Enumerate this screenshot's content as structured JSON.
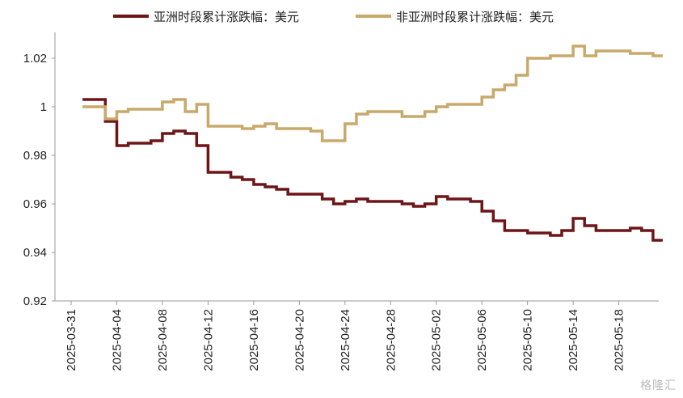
{
  "chart_data": {
    "type": "line",
    "title": "",
    "xlabel": "",
    "ylabel": "",
    "ylim": [
      0.92,
      1.03
    ],
    "yticks": [
      "1.02",
      "1",
      "0.98",
      "0.96",
      "0.94",
      "0.92"
    ],
    "ytick_values": [
      1.02,
      1.0,
      0.98,
      0.96,
      0.94,
      0.92
    ],
    "xticks": [
      "2025-03-31",
      "2025-04-04",
      "2025-04-08",
      "2025-04-12",
      "2025-04-16",
      "2025-04-20",
      "2025-04-24",
      "2025-04-28",
      "2025-05-02",
      "2025-05-06",
      "2025-05-10",
      "2025-05-14",
      "2025-05-18"
    ],
    "legend_position": "top",
    "grid": false,
    "x": [
      "2025-04-01",
      "2025-04-02",
      "2025-04-03",
      "2025-04-04",
      "2025-04-05",
      "2025-04-07",
      "2025-04-08",
      "2025-04-09",
      "2025-04-10",
      "2025-04-11",
      "2025-04-12",
      "2025-04-14",
      "2025-04-15",
      "2025-04-16",
      "2025-04-17",
      "2025-04-18",
      "2025-04-19",
      "2025-04-21",
      "2025-04-22",
      "2025-04-23",
      "2025-04-24",
      "2025-04-25",
      "2025-04-26",
      "2025-04-28",
      "2025-04-29",
      "2025-04-30",
      "2025-05-01",
      "2025-05-02",
      "2025-05-03",
      "2025-05-05",
      "2025-05-06",
      "2025-05-07",
      "2025-05-08",
      "2025-05-09",
      "2025-05-10",
      "2025-05-12",
      "2025-05-13",
      "2025-05-14",
      "2025-05-15",
      "2025-05-16",
      "2025-05-17",
      "2025-05-19",
      "2025-05-20",
      "2025-05-21"
    ],
    "series": [
      {
        "name": "亚洲时段累计涨跌幅：美元",
        "color": "#6e1518",
        "values": [
          1.003,
          1.003,
          0.994,
          0.984,
          0.985,
          0.986,
          0.989,
          0.99,
          0.989,
          0.984,
          0.973,
          0.971,
          0.97,
          0.968,
          0.967,
          0.966,
          0.964,
          0.964,
          0.962,
          0.96,
          0.961,
          0.962,
          0.961,
          0.961,
          0.96,
          0.959,
          0.96,
          0.963,
          0.962,
          0.961,
          0.957,
          0.953,
          0.949,
          0.949,
          0.948,
          0.947,
          0.949,
          0.954,
          0.951,
          0.949,
          0.949,
          0.95,
          0.949,
          0.945
        ]
      },
      {
        "name": "非亚洲时段累计涨跌幅：美元",
        "color": "#c8a96a",
        "values": [
          1.0,
          1.0,
          0.995,
          0.998,
          0.999,
          0.999,
          1.002,
          1.003,
          0.998,
          1.001,
          0.992,
          0.992,
          0.991,
          0.992,
          0.993,
          0.991,
          0.991,
          0.99,
          0.986,
          0.986,
          0.993,
          0.997,
          0.998,
          0.998,
          0.996,
          0.996,
          0.998,
          1.0,
          1.001,
          1.001,
          1.004,
          1.007,
          1.009,
          1.013,
          1.02,
          1.021,
          1.021,
          1.025,
          1.021,
          1.023,
          1.023,
          1.022,
          1.022,
          1.021
        ]
      }
    ]
  },
  "watermark": "格隆汇"
}
